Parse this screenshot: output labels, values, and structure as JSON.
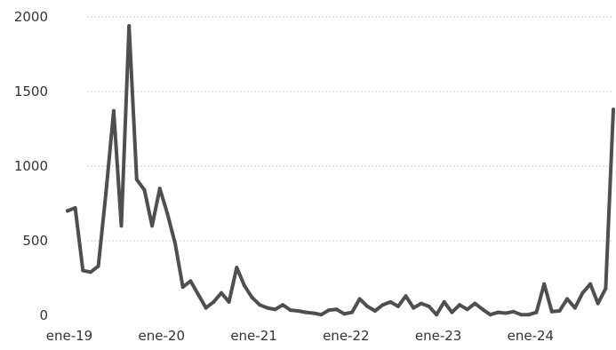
{
  "chart_data": {
    "type": "line",
    "title": "",
    "xlabel": "",
    "ylabel": "",
    "x": [
      "ene-19",
      "feb-19",
      "mar-19",
      "abr-19",
      "may-19",
      "jun-19",
      "jul-19",
      "ago-19",
      "sep-19",
      "oct-19",
      "nov-19",
      "dic-19",
      "ene-20",
      "feb-20",
      "mar-20",
      "abr-20",
      "may-20",
      "jun-20",
      "jul-20",
      "ago-20",
      "sep-20",
      "oct-20",
      "nov-20",
      "dic-20",
      "ene-21",
      "feb-21",
      "mar-21",
      "abr-21",
      "may-21",
      "jun-21",
      "jul-21",
      "ago-21",
      "sep-21",
      "oct-21",
      "nov-21",
      "dic-21",
      "ene-22",
      "feb-22",
      "mar-22",
      "abr-22",
      "may-22",
      "jun-22",
      "jul-22",
      "ago-22",
      "sep-22",
      "oct-22",
      "nov-22",
      "dic-22",
      "ene-23",
      "feb-23",
      "mar-23",
      "abr-23",
      "may-23",
      "jun-23",
      "jul-23",
      "ago-23",
      "sep-23",
      "oct-23",
      "nov-23",
      "dic-23",
      "ene-24",
      "feb-24",
      "mar-24",
      "abr-24",
      "may-24",
      "jun-24",
      "jul-24",
      "ago-24",
      "sep-24",
      "oct-24",
      "nov-24",
      "dic-24"
    ],
    "series": [
      {
        "values": [
          700,
          720,
          300,
          290,
          330,
          820,
          1370,
          600,
          1940,
          910,
          840,
          600,
          850,
          680,
          480,
          190,
          230,
          140,
          50,
          90,
          150,
          90,
          320,
          200,
          120,
          70,
          50,
          40,
          70,
          35,
          30,
          20,
          15,
          5,
          35,
          40,
          10,
          20,
          110,
          60,
          30,
          70,
          90,
          60,
          130,
          50,
          80,
          60,
          5,
          90,
          20,
          70,
          40,
          80,
          40,
          5,
          20,
          15,
          25,
          5,
          5,
          20,
          210,
          25,
          30,
          110,
          50,
          150,
          210,
          80,
          180,
          1380
        ]
      }
    ],
    "xticks": [
      {
        "label": "ene-19",
        "index": 0
      },
      {
        "label": "ene-20",
        "index": 12
      },
      {
        "label": "ene-21",
        "index": 24
      },
      {
        "label": "ene-22",
        "index": 36
      },
      {
        "label": "ene-23",
        "index": 48
      },
      {
        "label": "ene-24",
        "index": 60
      }
    ],
    "yticks": [
      "0",
      "500",
      "1000",
      "1500",
      "2000"
    ],
    "ylim": [
      0,
      2000
    ],
    "grid": true,
    "legend": "none",
    "colors": {
      "line": "#4f4f4f",
      "grid": "#c8c8c8",
      "text": "#333333"
    }
  }
}
